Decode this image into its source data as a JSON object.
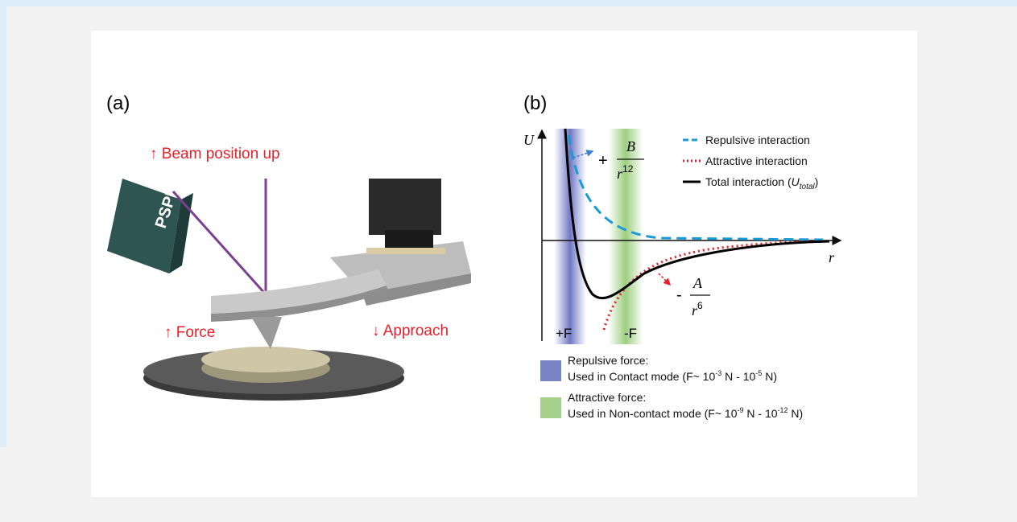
{
  "panel_a": {
    "label": "(a)",
    "detector_label": "PSPD",
    "annotations": [
      "↑ Beam position up",
      "↑ Force",
      "↓ Approach"
    ]
  },
  "panel_b": {
    "label": "(b)",
    "y_axis_label": "U",
    "x_axis_label": "r",
    "region_labels": [
      "+F",
      "-F"
    ],
    "repulsive_term": {
      "sign": "+",
      "numerator": "B",
      "base": "r",
      "exponent": "12"
    },
    "attractive_term": {
      "sign": "-",
      "numerator": "A",
      "base": "r",
      "exponent": "6"
    },
    "legend": [
      {
        "text": "Repulsive interaction"
      },
      {
        "text": "Attractive interaction"
      },
      {
        "text": "Total interaction (",
        "symbol": "U",
        "subscript": "total",
        "close": ")"
      }
    ],
    "force_legend": [
      {
        "title": "Repulsive force:",
        "line": [
          "Used in Contact mode (F~ 10",
          "-3",
          " N - 10",
          "-5",
          " N)"
        ]
      },
      {
        "title": "Attractive force:",
        "line": [
          "Used in Non-contact mode (F~ 10",
          "-9",
          " N - 10",
          "-12",
          " N)"
        ]
      }
    ]
  }
}
